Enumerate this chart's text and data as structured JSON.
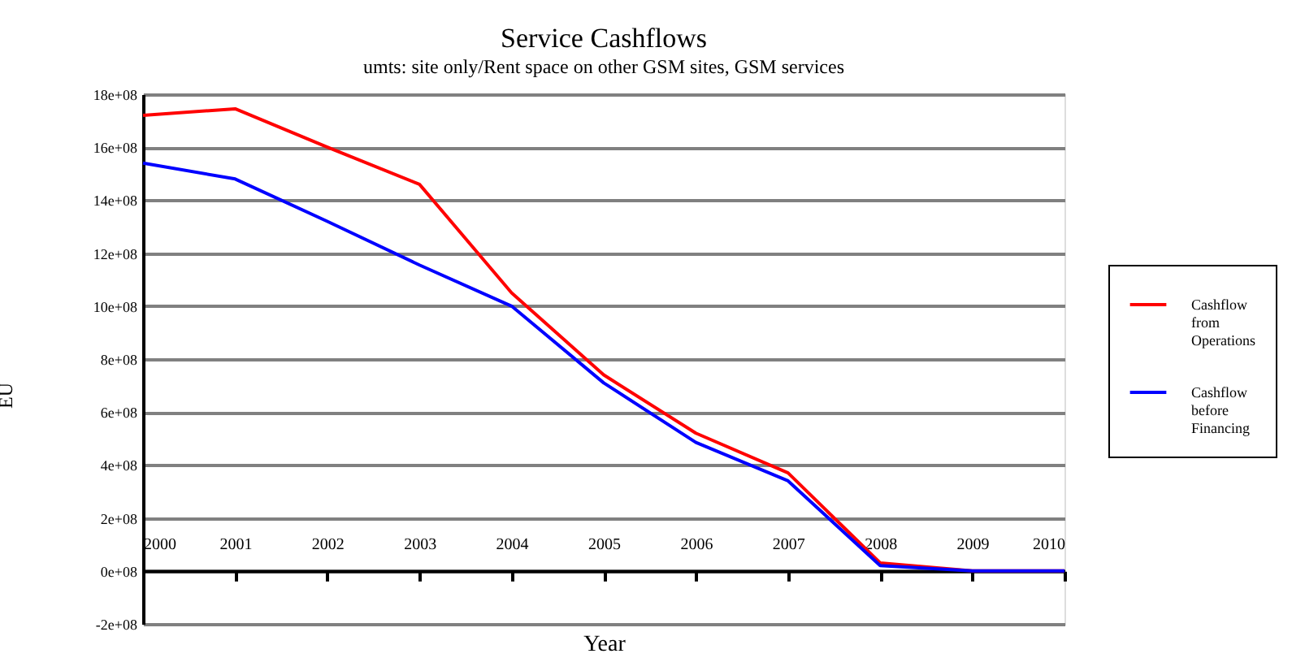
{
  "chart_data": {
    "type": "line",
    "title": "Service Cashflows",
    "subtitle": "umts: site only/Rent space on other GSM sites, GSM services",
    "xlabel": "Year",
    "ylabel": "EU",
    "categories": [
      "2000",
      "2001",
      "2002",
      "2003",
      "2004",
      "2005",
      "2006",
      "2007",
      "2008",
      "2009",
      "2010"
    ],
    "series": [
      {
        "name": "Cashflow from Operations",
        "color": "#ff0000",
        "values": [
          1720000000.0,
          1745000000.0,
          1600000000.0,
          1460000000.0,
          1050000000.0,
          740000000.0,
          520000000.0,
          370000000.0,
          30000000.0,
          0,
          0
        ]
      },
      {
        "name": "Cashflow before Financing",
        "color": "#0000ff",
        "values": [
          1540000000.0,
          1480000000.0,
          1320000000.0,
          1155000000.0,
          1000000000.0,
          710000000.0,
          485000000.0,
          340000000.0,
          20000000.0,
          0,
          0
        ]
      }
    ],
    "ylim": [
      -200000000.0,
      1800000000.0
    ],
    "yticks": [
      {
        "value": -200000000.0,
        "label": "-2e+08"
      },
      {
        "value": 0,
        "label": "0e+08"
      },
      {
        "value": 200000000.0,
        "label": "2e+08"
      },
      {
        "value": 400000000.0,
        "label": "4e+08"
      },
      {
        "value": 600000000.0,
        "label": "6e+08"
      },
      {
        "value": 800000000.0,
        "label": "8e+08"
      },
      {
        "value": 1000000000.0,
        "label": "10e+08"
      },
      {
        "value": 1200000000.0,
        "label": "12e+08"
      },
      {
        "value": 1400000000.0,
        "label": "14e+08"
      },
      {
        "value": 1600000000.0,
        "label": "16e+08"
      },
      {
        "value": 1800000000.0,
        "label": "18e+08"
      }
    ],
    "grid": "y",
    "legend": "right",
    "marker": "none",
    "line_style": "solid"
  }
}
